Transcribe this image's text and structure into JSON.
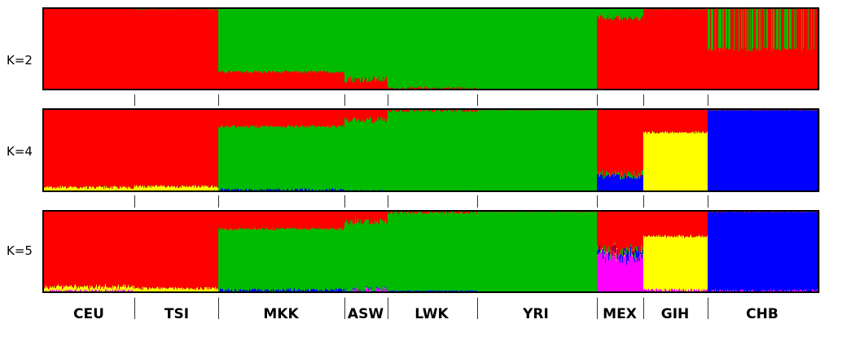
{
  "chart_data": {
    "type": "bar",
    "subtype": "stacked-admixture",
    "title": "",
    "xlabel": "",
    "ylabel": "",
    "ylim": [
      0,
      1
    ],
    "colors": {
      "red": "#ff0000",
      "green": "#00bb00",
      "blue": "#0000ff",
      "yellow": "#ffff00",
      "magenta": "#ff00ff"
    },
    "populations": [
      {
        "name": "CEU",
        "width": 112
      },
      {
        "name": "TSI",
        "width": 103
      },
      {
        "name": "MKK",
        "width": 155
      },
      {
        "name": "ASW",
        "width": 53
      },
      {
        "name": "LWK",
        "width": 110
      },
      {
        "name": "YRI",
        "width": 147
      },
      {
        "name": "MEX",
        "width": 57
      },
      {
        "name": "GIH",
        "width": 79
      },
      {
        "name": "CHB",
        "width": 137
      }
    ],
    "panels": [
      {
        "k_label": "K=2",
        "components": [
          "red",
          "green"
        ],
        "mean_proportions": {
          "CEU": [
            1.0,
            0.0
          ],
          "TSI": [
            0.99,
            0.01
          ],
          "MKK": [
            0.22,
            0.78
          ],
          "ASW": [
            0.13,
            0.87
          ],
          "LWK": [
            0.02,
            0.98
          ],
          "YRI": [
            0.01,
            0.99
          ],
          "MEX": [
            0.88,
            0.12
          ],
          "GIH": [
            0.99,
            0.01
          ],
          "CHB": [
            0.55,
            0.45
          ]
        }
      },
      {
        "k_label": "K=4",
        "components": [
          "yellow",
          "blue",
          "green",
          "red"
        ],
        "mean_proportions": {
          "CEU": [
            0.05,
            0.0,
            0.0,
            0.95
          ],
          "TSI": [
            0.06,
            0.0,
            0.0,
            0.94
          ],
          "MKK": [
            0.0,
            0.02,
            0.77,
            0.21
          ],
          "ASW": [
            0.0,
            0.01,
            0.86,
            0.13
          ],
          "LWK": [
            0.0,
            0.01,
            0.97,
            0.02
          ],
          "YRI": [
            0.0,
            0.0,
            0.99,
            0.01
          ],
          "MEX": [
            0.0,
            0.18,
            0.03,
            0.79
          ],
          "GIH": [
            0.72,
            0.0,
            0.0,
            0.28
          ],
          "CHB": [
            0.0,
            0.99,
            0.0,
            0.01
          ]
        }
      },
      {
        "k_label": "K=5",
        "components": [
          "magenta",
          "yellow",
          "blue",
          "green",
          "red"
        ],
        "mean_proportions": {
          "CEU": [
            0.02,
            0.05,
            0.0,
            0.0,
            0.93
          ],
          "TSI": [
            0.01,
            0.04,
            0.0,
            0.0,
            0.95
          ],
          "MKK": [
            0.01,
            0.0,
            0.02,
            0.75,
            0.22
          ],
          "ASW": [
            0.02,
            0.0,
            0.01,
            0.84,
            0.13
          ],
          "LWK": [
            0.01,
            0.0,
            0.01,
            0.96,
            0.02
          ],
          "YRI": [
            0.0,
            0.0,
            0.0,
            0.99,
            0.01
          ],
          "MEX": [
            0.45,
            0.0,
            0.05,
            0.02,
            0.48
          ],
          "GIH": [
            0.03,
            0.66,
            0.0,
            0.0,
            0.31
          ],
          "CHB": [
            0.02,
            0.0,
            0.97,
            0.0,
            0.01
          ]
        }
      }
    ]
  }
}
